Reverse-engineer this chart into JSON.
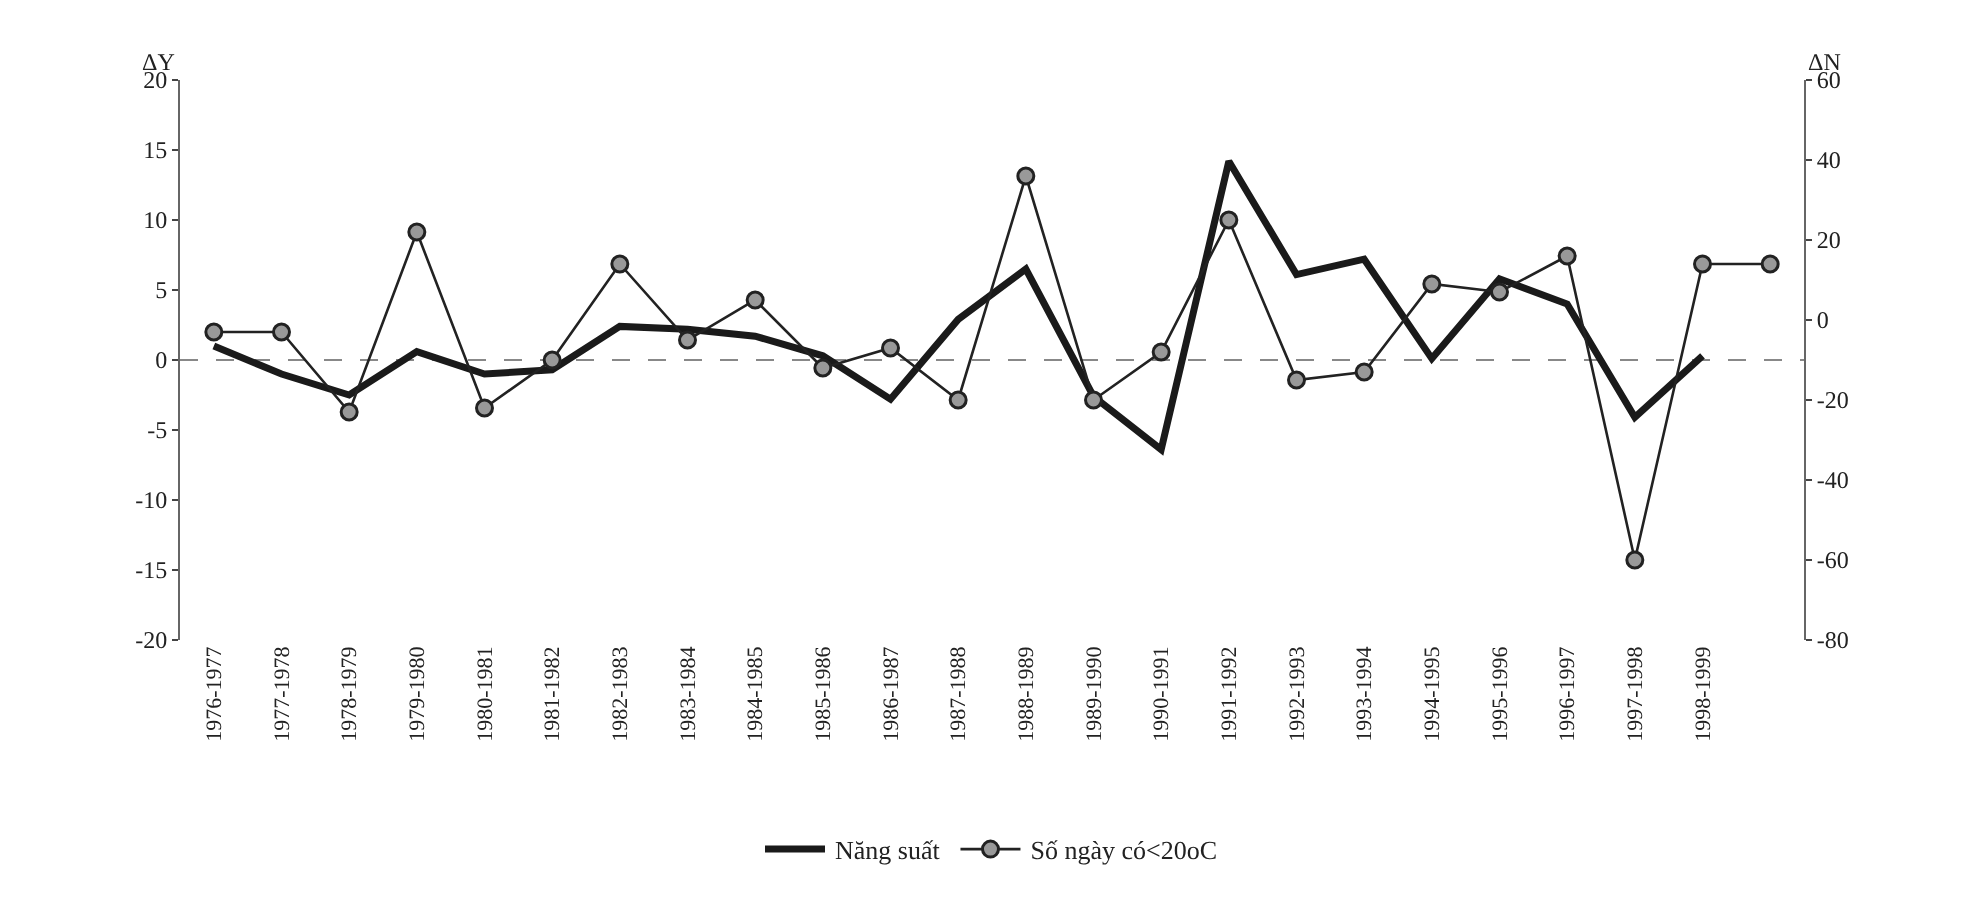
{
  "chart_data": {
    "type": "line",
    "categories": [
      "1976-1977",
      "1977-1978",
      "1978-1979",
      "1979-1980",
      "1980-1981",
      "1981-1982",
      "1982-1983",
      "1983-1984",
      "1984-1985",
      "1985-1986",
      "1986-1987",
      "1987-1988",
      "1988-1989",
      "1989-1990",
      "1990-1991",
      "1991-1992",
      "1992-1993",
      "1993-1994",
      "1994-1995",
      "1995-1996",
      "1996-1997",
      "1997-1998",
      "1998-1999",
      null
    ],
    "ylabel": "ΔY",
    "y2label": "ΔN",
    "ylim": [
      -20,
      20
    ],
    "yticks": [
      -20,
      -15,
      -10,
      -5,
      0,
      5,
      10,
      15,
      20
    ],
    "y2lim": [
      -80,
      60
    ],
    "y2ticks": [
      -80,
      -60,
      -40,
      -20,
      0,
      20,
      40,
      60
    ],
    "series": [
      {
        "name": "Năng suất",
        "color": "#1a1a1a",
        "marker": "none",
        "values": [
          1.0,
          -1.0,
          -2.5,
          0.6,
          -1.0,
          -0.7,
          2.4,
          2.2,
          1.7,
          0.3,
          -2.8,
          2.9,
          6.5,
          -2.6,
          -6.4,
          14.2,
          6.1,
          7.2,
          0.1,
          5.8,
          4.0,
          -4.1,
          0.3,
          null
        ]
      },
      {
        "name": "Số ngày có<20oC",
        "color": "#222222",
        "marker": "circle",
        "axis": "y2",
        "values": [
          -3,
          -3,
          -23,
          22,
          -22,
          -10,
          14,
          -5,
          5,
          -12,
          -7,
          -20,
          36,
          -20,
          -8,
          25,
          -15,
          -13,
          9,
          7,
          16,
          -60,
          14,
          14
        ]
      }
    ],
    "ref_lines": [
      {
        "axis": "y",
        "value": 0,
        "line_style": "dashed",
        "color": "#888888"
      }
    ],
    "grid": false,
    "legend": "bottom"
  }
}
